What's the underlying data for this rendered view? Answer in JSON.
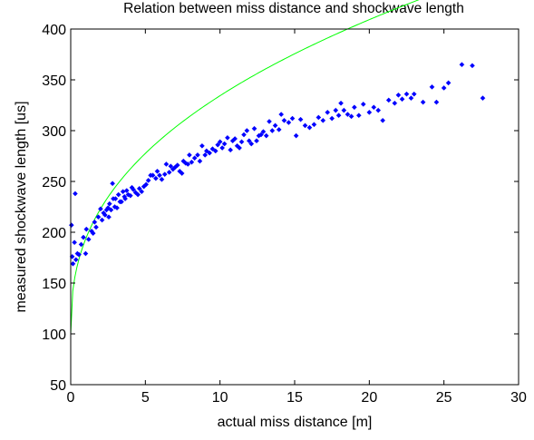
{
  "chart_data": {
    "type": "scatter",
    "title": "Relation between miss distance and shockwave length",
    "xlabel": "actual miss distance [m]",
    "ylabel": "measured shockwave length [us]",
    "xlim": [
      0,
      30
    ],
    "ylim": [
      50,
      400
    ],
    "xticks": [
      0,
      5,
      10,
      15,
      20,
      25,
      30
    ],
    "yticks": [
      50,
      100,
      150,
      200,
      250,
      300,
      350,
      400
    ],
    "grid": false,
    "legend": "none",
    "colors": {
      "points": "#0000ff",
      "fit": "#00ff00",
      "axes": "#000000",
      "background": "#ffffff"
    },
    "series": [
      {
        "kind": "scatter",
        "marker": "diamond",
        "points": [
          [
            0.05,
            207
          ],
          [
            0.1,
            176
          ],
          [
            0.15,
            169
          ],
          [
            0.25,
            190
          ],
          [
            0.3,
            238
          ],
          [
            0.35,
            173
          ],
          [
            0.45,
            179
          ],
          [
            0.55,
            178
          ],
          [
            0.7,
            188
          ],
          [
            0.85,
            195
          ],
          [
            1.0,
            179
          ],
          [
            1.05,
            203
          ],
          [
            1.2,
            193
          ],
          [
            1.4,
            201
          ],
          [
            1.5,
            199
          ],
          [
            1.6,
            210
          ],
          [
            1.7,
            205
          ],
          [
            1.85,
            215
          ],
          [
            2.0,
            223
          ],
          [
            2.1,
            212
          ],
          [
            2.2,
            219
          ],
          [
            2.3,
            217
          ],
          [
            2.4,
            222
          ],
          [
            2.5,
            224
          ],
          [
            2.55,
            215
          ],
          [
            2.6,
            228
          ],
          [
            2.7,
            222
          ],
          [
            2.8,
            248
          ],
          [
            2.85,
            233
          ],
          [
            2.95,
            225
          ],
          [
            3.0,
            233
          ],
          [
            3.1,
            224
          ],
          [
            3.2,
            237
          ],
          [
            3.3,
            230
          ],
          [
            3.4,
            230
          ],
          [
            3.5,
            240
          ],
          [
            3.6,
            235
          ],
          [
            3.65,
            233
          ],
          [
            3.75,
            241
          ],
          [
            3.85,
            237
          ],
          [
            4.0,
            236
          ],
          [
            4.1,
            244
          ],
          [
            4.2,
            242
          ],
          [
            4.35,
            239
          ],
          [
            4.5,
            237
          ],
          [
            4.6,
            243
          ],
          [
            4.75,
            240
          ],
          [
            4.9,
            245
          ],
          [
            5.05,
            247
          ],
          [
            5.2,
            251
          ],
          [
            5.35,
            256
          ],
          [
            5.5,
            256
          ],
          [
            5.7,
            253
          ],
          [
            5.8,
            260
          ],
          [
            5.95,
            256
          ],
          [
            6.1,
            252
          ],
          [
            6.3,
            257
          ],
          [
            6.4,
            267
          ],
          [
            6.6,
            259
          ],
          [
            6.7,
            265
          ],
          [
            6.85,
            262
          ],
          [
            7.0,
            264
          ],
          [
            7.15,
            266
          ],
          [
            7.3,
            260
          ],
          [
            7.45,
            258
          ],
          [
            7.55,
            270
          ],
          [
            7.7,
            268
          ],
          [
            7.85,
            267
          ],
          [
            7.95,
            276
          ],
          [
            8.1,
            269
          ],
          [
            8.3,
            273
          ],
          [
            8.5,
            276
          ],
          [
            8.65,
            270
          ],
          [
            8.8,
            285
          ],
          [
            9.0,
            276
          ],
          [
            9.1,
            280
          ],
          [
            9.3,
            278
          ],
          [
            9.5,
            282
          ],
          [
            9.7,
            280
          ],
          [
            9.85,
            286
          ],
          [
            10.0,
            289
          ],
          [
            10.15,
            283
          ],
          [
            10.3,
            287
          ],
          [
            10.5,
            293
          ],
          [
            10.7,
            281
          ],
          [
            10.85,
            290
          ],
          [
            11.0,
            292
          ],
          [
            11.15,
            285
          ],
          [
            11.3,
            283
          ],
          [
            11.45,
            289
          ],
          [
            11.6,
            296
          ],
          [
            11.8,
            300
          ],
          [
            11.95,
            290
          ],
          [
            12.1,
            287
          ],
          [
            12.3,
            302
          ],
          [
            12.45,
            290
          ],
          [
            12.6,
            295
          ],
          [
            12.75,
            296
          ],
          [
            12.9,
            299
          ],
          [
            13.1,
            295
          ],
          [
            13.3,
            309
          ],
          [
            13.5,
            300
          ],
          [
            13.7,
            305
          ],
          [
            13.95,
            301
          ],
          [
            14.1,
            316
          ],
          [
            14.3,
            310
          ],
          [
            14.6,
            308
          ],
          [
            14.85,
            312
          ],
          [
            15.1,
            295
          ],
          [
            15.4,
            311
          ],
          [
            15.7,
            305
          ],
          [
            16.0,
            303
          ],
          [
            16.3,
            306
          ],
          [
            16.6,
            313
          ],
          [
            16.9,
            310
          ],
          [
            17.2,
            318
          ],
          [
            17.5,
            312
          ],
          [
            17.75,
            320
          ],
          [
            17.95,
            315
          ],
          [
            18.1,
            327
          ],
          [
            18.3,
            320
          ],
          [
            18.55,
            316
          ],
          [
            18.8,
            314
          ],
          [
            19.0,
            323
          ],
          [
            19.3,
            315
          ],
          [
            19.6,
            326
          ],
          [
            20.0,
            318
          ],
          [
            20.3,
            323
          ],
          [
            20.6,
            320
          ],
          [
            20.9,
            310
          ],
          [
            21.3,
            330
          ],
          [
            21.7,
            327
          ],
          [
            21.95,
            335
          ],
          [
            22.2,
            331
          ],
          [
            22.5,
            336
          ],
          [
            22.8,
            332
          ],
          [
            23.0,
            336
          ],
          [
            23.6,
            328
          ],
          [
            24.2,
            343
          ],
          [
            24.5,
            328
          ],
          [
            25.0,
            342
          ],
          [
            25.3,
            347
          ],
          [
            26.2,
            365
          ],
          [
            26.9,
            364
          ],
          [
            27.6,
            332
          ]
        ]
      },
      {
        "kind": "fit-line",
        "equation": "y = 100 + 93.3 * x^0.4"
      }
    ]
  }
}
